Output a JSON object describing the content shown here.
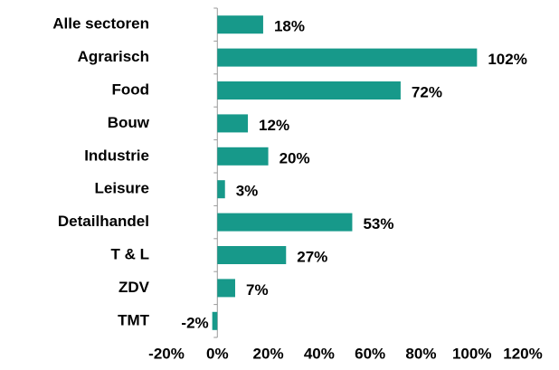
{
  "chart_data": {
    "type": "bar",
    "orientation": "horizontal",
    "categories": [
      "Alle sectoren",
      "Agrarisch",
      "Food",
      "Bouw",
      "Industrie",
      "Leisure",
      "Detailhandel",
      "T & L",
      "ZDV",
      "TMT"
    ],
    "values": [
      18,
      102,
      72,
      12,
      20,
      3,
      53,
      27,
      7,
      -2
    ],
    "value_labels": [
      "18%",
      "102%",
      "72%",
      "12%",
      "20%",
      "3%",
      "53%",
      "27%",
      "7%",
      "-2%"
    ],
    "color": "#17998a",
    "xlim": [
      -20,
      120
    ],
    "xticks": [
      {
        "value": -20,
        "label": "-20%"
      },
      {
        "value": 0,
        "label": "0%"
      },
      {
        "value": 20,
        "label": "20%"
      },
      {
        "value": 40,
        "label": "40%"
      },
      {
        "value": 60,
        "label": "60%"
      },
      {
        "value": 80,
        "label": "80%"
      },
      {
        "value": 100,
        "label": "100%"
      },
      {
        "value": 120,
        "label": "120%"
      }
    ]
  }
}
